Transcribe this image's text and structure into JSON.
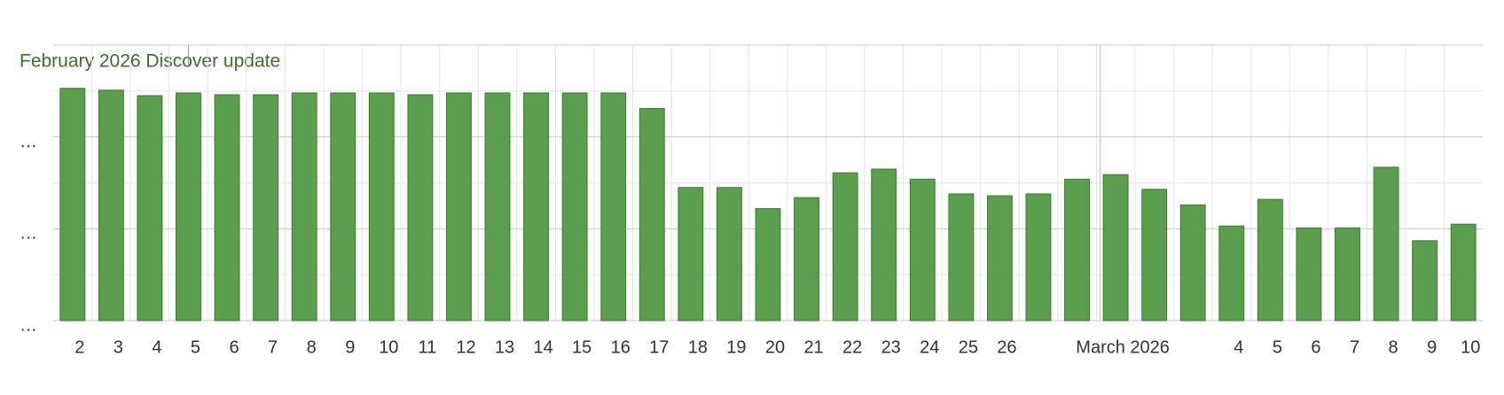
{
  "chart_data": {
    "type": "bar",
    "annotation": "February 2026 Discover update",
    "categories": [
      "2",
      "3",
      "4",
      "5",
      "6",
      "7",
      "8",
      "9",
      "10",
      "11",
      "12",
      "13",
      "14",
      "15",
      "16",
      "17",
      "18",
      "19",
      "20",
      "21",
      "22",
      "23",
      "24",
      "25",
      "26",
      null,
      null,
      "March 2026",
      null,
      null,
      "4",
      "5",
      "6",
      "7",
      "8",
      "9",
      "10"
    ],
    "values": [
      2.53,
      2.51,
      2.45,
      2.48,
      2.46,
      2.46,
      2.48,
      2.48,
      2.48,
      2.46,
      2.48,
      2.48,
      2.48,
      2.48,
      2.48,
      2.31,
      1.45,
      1.45,
      1.22,
      1.34,
      1.61,
      1.65,
      1.54,
      1.38,
      1.36,
      1.38,
      1.54,
      1.59,
      1.43,
      1.26,
      1.03,
      1.32,
      1.01,
      1.01,
      1.67,
      0.87,
      1.05
    ],
    "color": "#5a9e4e",
    "ylim": [
      0,
      3
    ],
    "yticks": [
      {
        "value": 0,
        "label": "…"
      },
      {
        "value": 1,
        "label": "…"
      },
      {
        "value": 2,
        "label": "…"
      }
    ],
    "minor_yticks": [
      0.5,
      1.5,
      2.5,
      3
    ],
    "grid": true
  }
}
